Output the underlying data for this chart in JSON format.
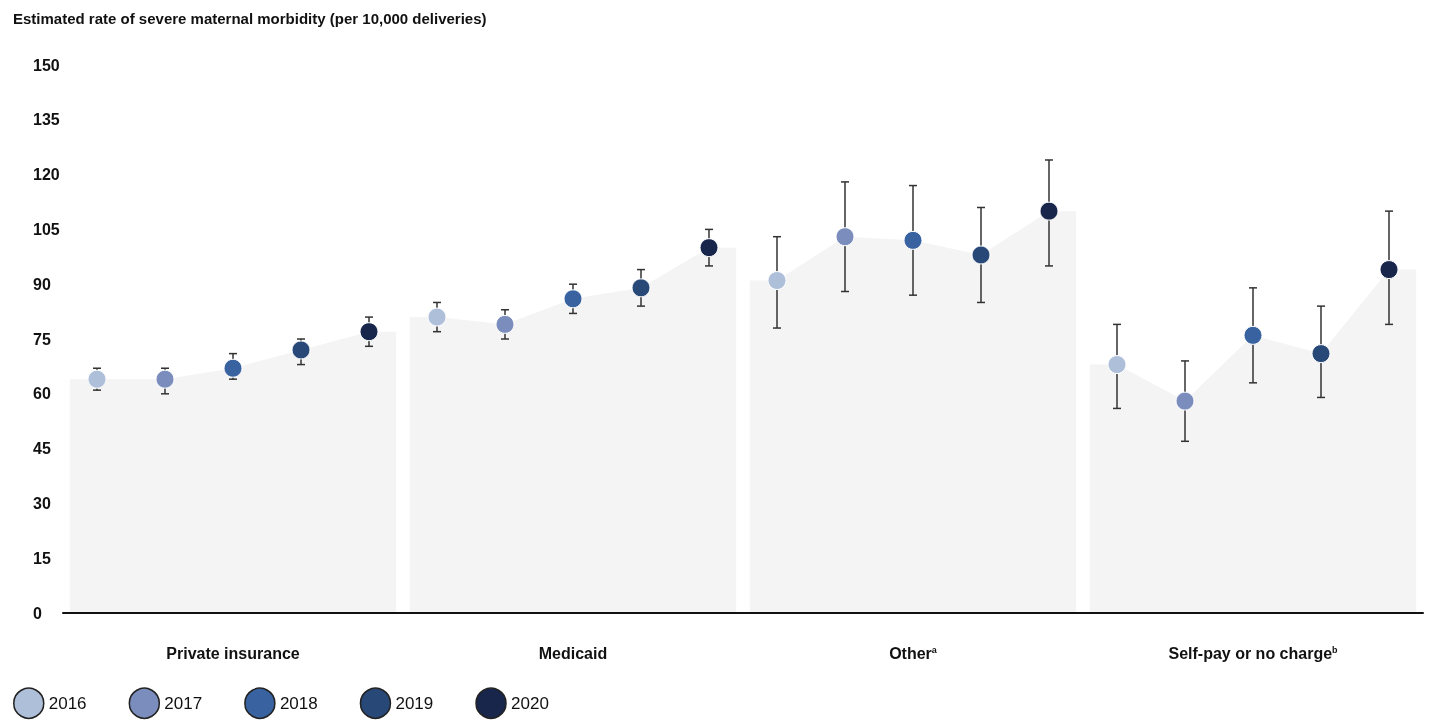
{
  "chart_data": {
    "type": "scatter",
    "title": "Estimated rate of severe maternal morbidity (per 10,000 deliveries)",
    "categories": [
      null,
      null,
      "Private insurance",
      null,
      null,
      null,
      null,
      "Medicaid",
      null,
      null,
      null,
      null,
      "Other$^{a}$",
      null,
      null,
      null,
      null,
      "Self-pay or no charge$^{b}$",
      null,
      null
    ],
    "series": [
      {
        "name": "2016",
        "color": "#aebfda",
        "values": [
          64,
          null,
          null,
          null,
          null,
          81,
          null,
          null,
          null,
          null,
          91,
          null,
          null,
          null,
          null,
          68,
          null,
          null,
          null,
          null
        ],
        "errors": [
          [
            61,
            67
          ],
          null,
          null,
          null,
          null,
          [
            77,
            85
          ],
          null,
          null,
          null,
          null,
          [
            78,
            103
          ],
          null,
          null,
          null,
          null,
          [
            56,
            79
          ],
          null,
          null,
          null,
          null
        ]
      },
      {
        "name": "2017",
        "color": "#7a8dbd",
        "values": [
          null,
          64,
          null,
          null,
          null,
          null,
          79,
          null,
          null,
          null,
          null,
          103,
          null,
          null,
          null,
          null,
          58,
          null,
          null,
          null
        ],
        "errors": [
          null,
          [
            60,
            67
          ],
          null,
          null,
          null,
          null,
          [
            75,
            83
          ],
          null,
          null,
          null,
          null,
          [
            88,
            118
          ],
          null,
          null,
          null,
          null,
          [
            47,
            69
          ],
          null,
          null,
          null
        ]
      },
      {
        "name": "2018",
        "color": "#3862a0",
        "values": [
          null,
          null,
          67,
          null,
          null,
          null,
          null,
          86,
          null,
          null,
          null,
          null,
          102,
          null,
          null,
          null,
          null,
          76,
          null,
          null
        ],
        "errors": [
          null,
          null,
          [
            64,
            71
          ],
          null,
          null,
          null,
          null,
          [
            82,
            90
          ],
          null,
          null,
          null,
          null,
          [
            87,
            117
          ],
          null,
          null,
          null,
          null,
          [
            63,
            89
          ],
          null,
          null
        ]
      },
      {
        "name": "2019",
        "color": "#284878",
        "values": [
          null,
          null,
          null,
          72,
          null,
          null,
          null,
          null,
          89,
          null,
          null,
          null,
          null,
          98,
          null,
          null,
          null,
          null,
          71,
          null
        ],
        "errors": [
          null,
          null,
          null,
          [
            68,
            75
          ],
          null,
          null,
          null,
          null,
          [
            84,
            94
          ],
          null,
          null,
          null,
          null,
          [
            85,
            111
          ],
          null,
          null,
          null,
          null,
          [
            59,
            84
          ],
          null
        ]
      },
      {
        "name": "2020",
        "color": "#17264a",
        "values": [
          null,
          null,
          null,
          null,
          77,
          null,
          null,
          null,
          null,
          100,
          null,
          null,
          null,
          null,
          110,
          null,
          null,
          null,
          null,
          94
        ],
        "errors": [
          null,
          null,
          null,
          null,
          [
            73,
            81
          ],
          null,
          null,
          null,
          null,
          [
            95,
            105
          ],
          null,
          null,
          null,
          null,
          [
            95,
            124
          ],
          null,
          null,
          null,
          null,
          [
            79,
            110
          ]
        ]
      }
    ],
    "ylim": [
      0,
      150
    ],
    "yticks": [
      0,
      15,
      30,
      45,
      60,
      75,
      90,
      105,
      120,
      135,
      150
    ],
    "legend": "bottom left",
    "marker": "circle",
    "grid": false
  }
}
